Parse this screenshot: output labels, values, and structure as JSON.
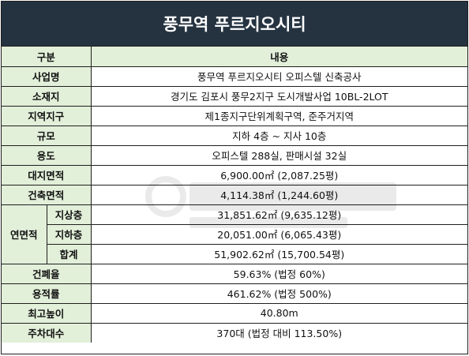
{
  "title": "풍무역 푸르지오시티",
  "header": {
    "category": "구분",
    "content": "내용"
  },
  "rows": [
    {
      "label": "사업명",
      "value": "풍무역 푸르지오시티 오피스텔 신축공사"
    },
    {
      "label": "소재지",
      "value": "경기도 김포시 풍무2지구 도시개발사업 10BL-2LOT"
    },
    {
      "label": "지역지구",
      "value": "제1종지구단위계획구역, 준주거지역"
    },
    {
      "label": "규모",
      "value": "지하 4층 ~ 지사 10층"
    },
    {
      "label": "용도",
      "value": "오피스텔 288실, 판매시설 32실"
    },
    {
      "label": "대지면적",
      "value": "6,900.00㎡ (2,087.25평)"
    },
    {
      "label": "건축면적",
      "value": "4,114.38㎡ (1,244.60평)"
    }
  ],
  "total_area": {
    "label": "연면적",
    "sub": [
      {
        "label": "지상층",
        "value": "31,851.62㎡ (9,635.12평)"
      },
      {
        "label": "지하층",
        "value": "20,051.00㎡ (6,065.43평)"
      },
      {
        "label": "합계",
        "value": "51,902.62㎡ (15,700.54평)"
      }
    ]
  },
  "rows2": [
    {
      "label": "건폐율",
      "value": "59.63% (법정 60%)"
    },
    {
      "label": "용적률",
      "value": "461.62% (법정 500%)"
    },
    {
      "label": "최고높이",
      "value": "40.80m"
    },
    {
      "label": "주차대수",
      "value": "370대 (법정 대비 113.50%)"
    }
  ],
  "colors": {
    "title_bg": "#253341",
    "label_bg": "#e2efd9",
    "border": "#1f1f1f"
  }
}
